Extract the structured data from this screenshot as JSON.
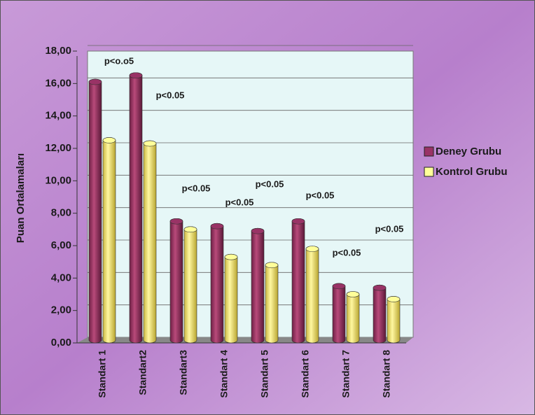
{
  "chart_data": {
    "type": "bar",
    "y_label": "Puan Ortalamaları",
    "categories": [
      "Standart 1",
      "Standart2",
      "Standart3",
      "Standart 4",
      "Standart 5",
      "Standart 6",
      "Standart 7",
      "Standart 8"
    ],
    "series": [
      {
        "name": "Deney Grubu",
        "color": "#993366",
        "values": [
          16.1,
          16.5,
          7.5,
          7.2,
          6.9,
          7.5,
          3.5,
          3.4
        ]
      },
      {
        "name": "Kontrol Grubu",
        "color": "#ffff99",
        "values": [
          12.5,
          12.3,
          7.0,
          5.3,
          4.8,
          5.8,
          3.0,
          2.7
        ]
      }
    ],
    "ylim": [
      0,
      18
    ],
    "yticks": [
      {
        "value": 0,
        "label": "0,00"
      },
      {
        "value": 2,
        "label": "2,00"
      },
      {
        "value": 4,
        "label": "4,00"
      },
      {
        "value": 6,
        "label": "6,00"
      },
      {
        "value": 8,
        "label": "8,00"
      },
      {
        "value": 10,
        "label": "10,00"
      },
      {
        "value": 12,
        "label": "12,00"
      },
      {
        "value": 14,
        "label": "14,00"
      },
      {
        "value": 16,
        "label": "16,00"
      },
      {
        "value": 18,
        "label": "18,00"
      }
    ],
    "grid": true,
    "legend": "right",
    "annotations": [
      "p<o.o5",
      "p<0.05",
      "p<0.05",
      "p<0.05",
      "p<0.05",
      "p<0.05",
      "p<0.05",
      "p<0.05"
    ]
  }
}
